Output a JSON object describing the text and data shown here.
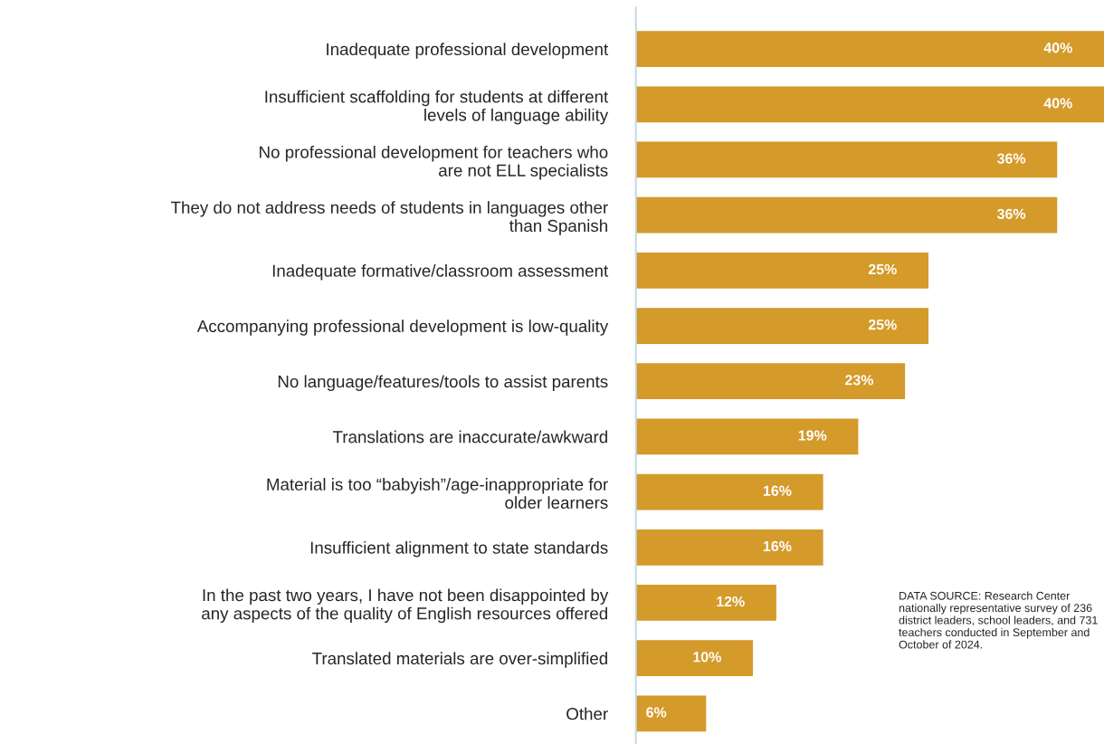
{
  "chart_data": {
    "type": "bar",
    "orientation": "horizontal",
    "categories": [
      "Inadequate professional development",
      "Insufficient scaffolding for students at different\nlevels of language ability",
      "No professional development for teachers who\nare not ELL specialists",
      "They do not address needs of students in languages other\nthan Spanish",
      "Inadequate formative/classroom assessment",
      "Accompanying professional development is low-quality",
      "No language/features/tools to assist parents",
      "Translations are inaccurate/awkward",
      "Material is too “babyish”/age-inappropriate for\nolder learners",
      "Insufficient alignment to state standards",
      "In the past two years, I have not been disappointed by\nany aspects of the quality of English resources offered",
      "Translated materials are over-simplified",
      "Other"
    ],
    "values": [
      40,
      40,
      36,
      36,
      25,
      25,
      23,
      19,
      16,
      16,
      12,
      10,
      6
    ],
    "value_labels": [
      "40%",
      "40%",
      "36%",
      "36%",
      "25%",
      "25%",
      "23%",
      "19%",
      "16%",
      "16%",
      "12%",
      "10%",
      "6%"
    ],
    "color": "#d49a2a",
    "annotations": [
      "DATA SOURCE: Research Center nationally representative survey of 236 district leaders, school leaders, and 731 teachers conducted in September and October of 2024."
    ]
  }
}
